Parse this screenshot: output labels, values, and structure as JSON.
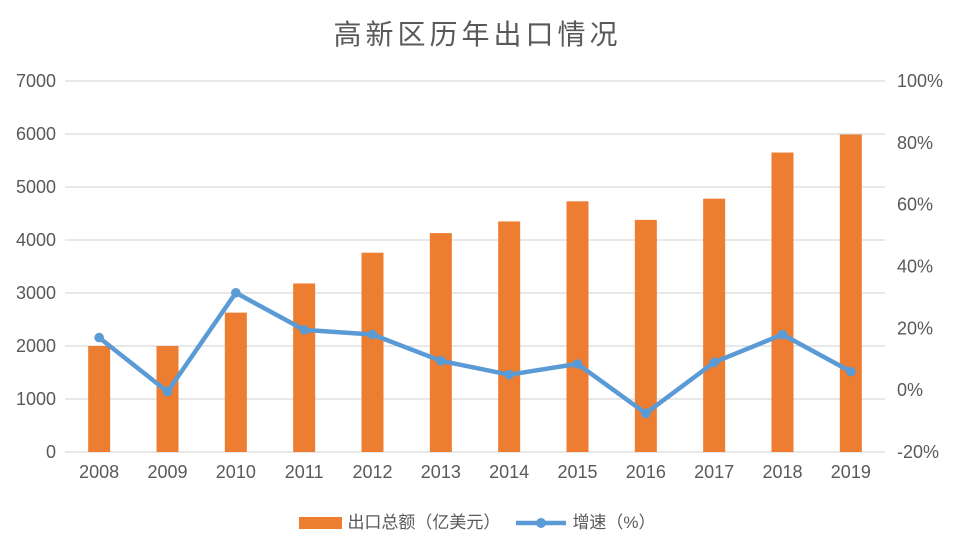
{
  "chart": {
    "title": "高新区历年出口情况"
  },
  "legend": {
    "bar_label": "出口总额（亿美元）",
    "line_label": "增速（%）"
  },
  "colors": {
    "bar": "#ED7D31",
    "line": "#5B9BD5",
    "grid": "#D9D9D9",
    "text": "#595959",
    "background": "#FFFFFF"
  },
  "chart_data": {
    "type": "combo",
    "title": "高新区历年出口情况",
    "categories": [
      "2008",
      "2009",
      "2010",
      "2011",
      "2012",
      "2013",
      "2014",
      "2015",
      "2016",
      "2017",
      "2018",
      "2019"
    ],
    "series": [
      {
        "name": "出口总额（亿美元）",
        "type": "bar",
        "axis": "left",
        "color": "#ED7D31",
        "values": [
          2000,
          2000,
          2630,
          3180,
          3760,
          4130,
          4350,
          4730,
          4380,
          4780,
          5650,
          5990
        ]
      },
      {
        "name": "增速（%）",
        "type": "line",
        "axis": "right",
        "color": "#5B9BD5",
        "values": [
          17,
          -0.5,
          31.5,
          19.5,
          18,
          9.5,
          5,
          8.5,
          -7.5,
          9,
          18,
          6
        ]
      }
    ],
    "left_axis": {
      "min": 0,
      "max": 7000,
      "step": 1000,
      "suffix": ""
    },
    "right_axis": {
      "min": -20,
      "max": 100,
      "step": 20,
      "suffix": "%"
    },
    "grid": "horizontal",
    "legend_position": "bottom"
  }
}
